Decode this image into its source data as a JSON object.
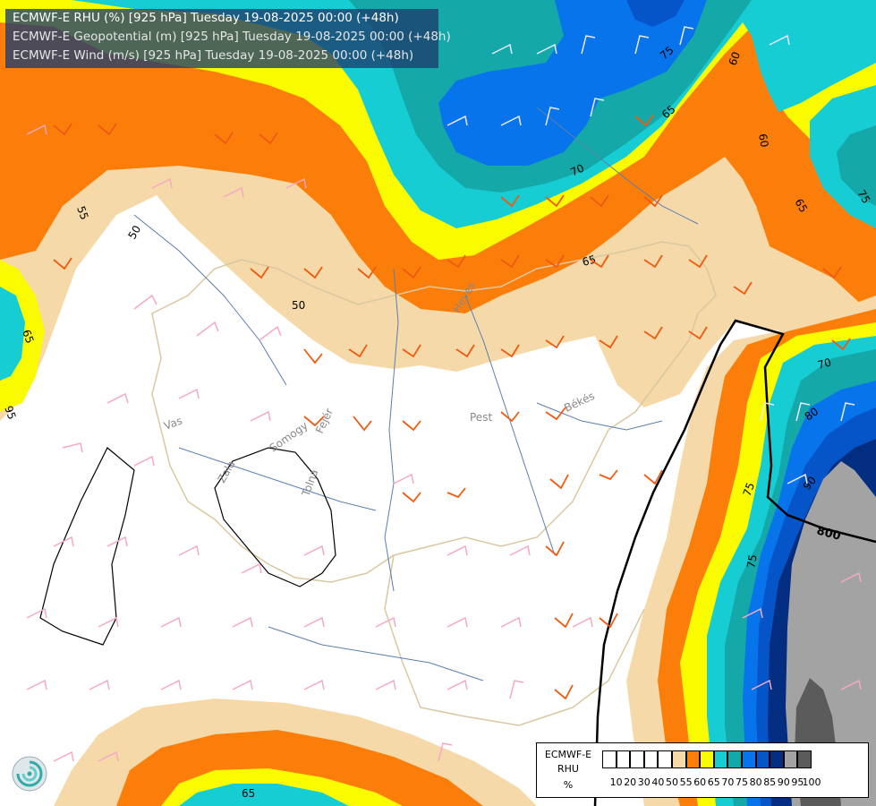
{
  "title": {
    "line1": "ECMWF-E RHU (%) [925 hPa] Tuesday 19-08-2025 00:00 (+48h)",
    "line2": "ECMWF-E Geopotential (m) [925 hPa] Tuesday 19-08-2025 00:00 (+48h)",
    "line3": "ECMWF-E Wind (m/s) [925 hPa] Tuesday 19-08-2025 00:00 (+48h)"
  },
  "legend": {
    "line1": "ECMWF-E",
    "line2": "RHU",
    "line3": "%",
    "ticks": [
      "10",
      "20",
      "30",
      "40",
      "50",
      "55",
      "60",
      "65",
      "70",
      "75",
      "80",
      "85",
      "90",
      "95",
      "100"
    ],
    "colors": [
      "#ffffff",
      "#ffffff",
      "#ffffff",
      "#ffffff",
      "#ffffff",
      "#f6d9a8",
      "#fb7e0b",
      "#fbfb00",
      "#16cdd4",
      "#14a8a8",
      "#0874ec",
      "#0655c8",
      "#022d80",
      "#a3a3a3",
      "#5b5b5b"
    ]
  },
  "contour_labels": {
    "rhu": [
      "50",
      "50",
      "55",
      "60",
      "60",
      "65",
      "65",
      "65",
      "65",
      "65",
      "70",
      "70",
      "75",
      "75",
      "75",
      "75",
      "80",
      "90",
      "95"
    ],
    "geopotential": [
      "800"
    ]
  },
  "region_labels": [
    "Vas",
    "Zala",
    "Somogy",
    "Tolna",
    "Fejér",
    "Pest",
    "Heves",
    "Békés"
  ],
  "colors": {
    "band_55": "#f6d9a8",
    "band_60": "#fb7e0b",
    "band_65": "#fbfb00",
    "band_70": "#16cdd4",
    "band_75": "#14a8a8",
    "band_80": "#0874ec",
    "band_85": "#0655c8",
    "band_90": "#022d80",
    "band_95": "#a3a3a3",
    "band_100": "#5b5b5b"
  }
}
